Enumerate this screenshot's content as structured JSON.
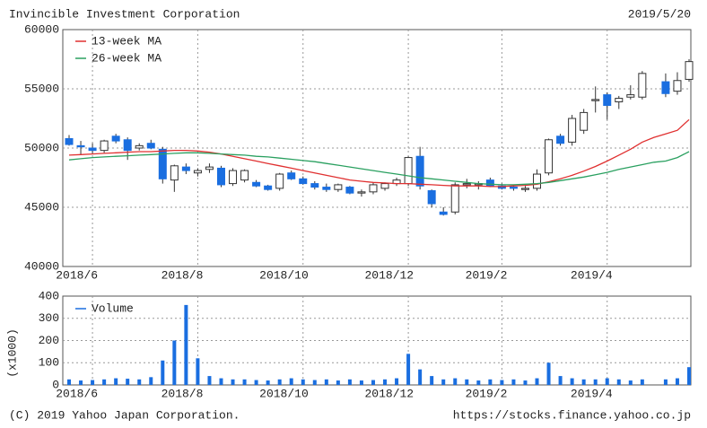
{
  "chart_data": [
    {
      "type": "candlestick",
      "title": "Invincible Investment Corporation",
      "date": "2019/5/20",
      "categories": [
        null,
        null,
        "2018/6",
        null,
        null,
        null,
        null,
        null,
        null,
        null,
        null,
        "2018/8",
        null,
        null,
        null,
        null,
        null,
        null,
        null,
        null,
        "2018/10",
        null,
        null,
        null,
        null,
        null,
        null,
        null,
        null,
        "2018/12",
        null,
        null,
        null,
        null,
        null,
        null,
        null,
        "2019/2",
        null,
        null,
        null,
        null,
        null,
        null,
        null,
        null,
        "2019/4",
        null,
        null,
        null,
        null,
        null,
        null,
        null
      ],
      "open": [
        50800,
        50200,
        50000,
        49800,
        51000,
        50700,
        50000,
        50400,
        49900,
        47300,
        48400,
        47900,
        48200,
        48300,
        47000,
        47300,
        47100,
        46800,
        46600,
        47900,
        47400,
        47000,
        46700,
        46500,
        46700,
        46200,
        46300,
        46600,
        47000,
        47000,
        49300,
        46400,
        44600,
        44600,
        46900,
        46900,
        47300,
        46800,
        46700,
        46500,
        46600,
        47900,
        51000,
        50500,
        51500,
        54000,
        54500,
        53900,
        54300,
        54300,
        null,
        55600,
        54800,
        55800
      ],
      "high": [
        51100,
        50600,
        50400,
        50700,
        51200,
        50900,
        50400,
        50700,
        50100,
        48600,
        48700,
        48300,
        48700,
        48500,
        48300,
        48200,
        47300,
        46900,
        47900,
        48100,
        47600,
        47200,
        47000,
        47000,
        46800,
        46500,
        47100,
        47100,
        47500,
        49300,
        50100,
        46500,
        45000,
        47100,
        47400,
        47200,
        47500,
        47000,
        46900,
        46800,
        48200,
        50800,
        51200,
        52800,
        53300,
        55200,
        54700,
        54400,
        55300,
        56500,
        null,
        56300,
        56400,
        57500
      ],
      "low": [
        50200,
        49400,
        49500,
        49600,
        50400,
        49000,
        49800,
        49900,
        47000,
        46300,
        47800,
        47600,
        47900,
        46700,
        46800,
        47100,
        46700,
        46400,
        46400,
        47300,
        46900,
        46500,
        46300,
        46300,
        46100,
        45900,
        46100,
        46400,
        46800,
        46800,
        46500,
        45000,
        44300,
        44400,
        46600,
        46500,
        46700,
        46500,
        46400,
        46300,
        46400,
        47700,
        50200,
        50200,
        51200,
        53000,
        52400,
        53300,
        54100,
        54100,
        null,
        54300,
        54500,
        55600
      ],
      "close": [
        50300,
        50100,
        49800,
        50600,
        50600,
        49800,
        50200,
        50000,
        47400,
        48500,
        48100,
        48100,
        48400,
        46900,
        48100,
        48100,
        46800,
        46500,
        47800,
        47400,
        47000,
        46700,
        46500,
        46900,
        46200,
        46300,
        46900,
        47000,
        47300,
        49200,
        46800,
        45300,
        44400,
        46900,
        47000,
        47000,
        46800,
        46600,
        46600,
        46600,
        47800,
        50700,
        50400,
        52500,
        53000,
        54100,
        53600,
        54200,
        54500,
        56300,
        null,
        54600,
        55700,
        57300
      ],
      "up_color": "#ffffff",
      "down_color": "#1a6ee0",
      "series": [
        {
          "name": "13-week MA",
          "color": "#e03030",
          "values": [
            49400,
            49450,
            49500,
            49550,
            49600,
            49650,
            49700,
            49700,
            49750,
            49800,
            49800,
            49750,
            49650,
            49500,
            49300,
            49100,
            48900,
            48700,
            48500,
            48300,
            48100,
            47900,
            47700,
            47500,
            47300,
            47200,
            47100,
            47050,
            47000,
            47000,
            46950,
            46900,
            46850,
            46800,
            46800,
            46800,
            46750,
            46750,
            46800,
            46850,
            46950,
            47150,
            47400,
            47700,
            48050,
            48450,
            48900,
            49400,
            49900,
            50500,
            50900,
            51200,
            51500,
            52400
          ]
        },
        {
          "name": "26-week MA",
          "color": "#2aa060",
          "values": [
            49000,
            49100,
            49200,
            49250,
            49300,
            49350,
            49400,
            49450,
            49500,
            49550,
            49600,
            49600,
            49550,
            49500,
            49450,
            49400,
            49300,
            49250,
            49150,
            49050,
            48950,
            48850,
            48700,
            48550,
            48400,
            48250,
            48100,
            47950,
            47800,
            47650,
            47500,
            47400,
            47300,
            47200,
            47100,
            47000,
            46950,
            46900,
            46900,
            46950,
            47000,
            47100,
            47250,
            47400,
            47550,
            47750,
            47950,
            48200,
            48400,
            48600,
            48800,
            48900,
            49200,
            49700
          ]
        }
      ],
      "ylim": [
        40000,
        60000
      ],
      "yticks": [
        40000,
        45000,
        50000,
        55000,
        60000
      ],
      "grid": true
    },
    {
      "type": "bar",
      "y_label": "(x1000)",
      "categories": [
        null,
        null,
        "2018/6",
        null,
        null,
        null,
        null,
        null,
        null,
        null,
        null,
        "2018/8",
        null,
        null,
        null,
        null,
        null,
        null,
        null,
        null,
        "2018/10",
        null,
        null,
        null,
        null,
        null,
        null,
        null,
        null,
        "2018/12",
        null,
        null,
        null,
        null,
        null,
        null,
        null,
        "2019/2",
        null,
        null,
        null,
        null,
        null,
        null,
        null,
        null,
        "2019/4",
        null,
        null,
        null,
        null,
        null,
        null,
        null
      ],
      "series": [
        {
          "name": "Volume",
          "color": "#1a6ee0",
          "values": [
            25,
            20,
            22,
            25,
            30,
            28,
            25,
            35,
            110,
            200,
            360,
            120,
            40,
            30,
            25,
            25,
            22,
            20,
            25,
            30,
            25,
            22,
            25,
            20,
            25,
            20,
            22,
            25,
            30,
            140,
            70,
            40,
            25,
            30,
            25,
            20,
            25,
            22,
            25,
            20,
            30,
            100,
            40,
            30,
            25,
            25,
            30,
            25,
            20,
            25,
            null,
            25,
            30,
            80
          ]
        }
      ],
      "ylim": [
        0,
        400
      ],
      "yticks": [
        0,
        100,
        200,
        300,
        400
      ],
      "grid": true
    }
  ],
  "footer": {
    "copyright": "(C) 2019 Yahoo Japan Corporation.",
    "url": "https://stocks.finance.yahoo.co.jp"
  }
}
